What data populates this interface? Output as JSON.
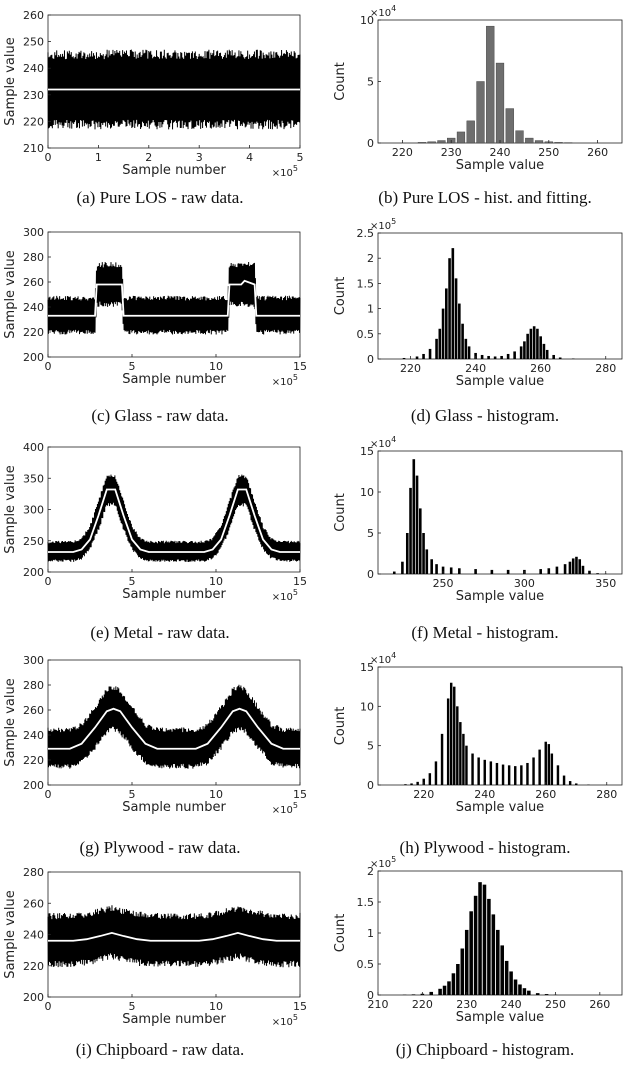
{
  "captions": {
    "a": "(a) Pure LOS - raw data.",
    "b": "(b) Pure LOS - hist. and fitting.",
    "c": "(c) Glass - raw data.",
    "d": "(d) Glass - histogram.",
    "e": "(e) Metal - raw data.",
    "f": "(f) Metal - histogram.",
    "g": "(g) Plywood - raw data.",
    "h": "(h) Plywood - histogram.",
    "i": "(i) Chipboard - raw data.",
    "j": "(j) Chipboard - histogram."
  },
  "chart_data": [
    {
      "id": "a",
      "type": "line",
      "xlabel": "Sample number",
      "ylabel": "Sample value",
      "xlim": [
        0,
        5
      ],
      "xticks": [
        0,
        1,
        2,
        3,
        4,
        5
      ],
      "x_exponent": "×10^5",
      "ylim": [
        210,
        260
      ],
      "yticks": [
        210,
        220,
        230,
        240,
        250,
        260
      ],
      "series": [
        {
          "x": [
            0,
            5
          ],
          "y": [
            232,
            232
          ]
        }
      ],
      "noise_band": {
        "x": [
          0,
          5
        ],
        "lower": [
          217,
          217
        ],
        "upper": [
          247,
          247
        ]
      }
    },
    {
      "id": "b",
      "type": "bar",
      "xlabel": "Sample value",
      "ylabel": "Count",
      "xlim": [
        215,
        265
      ],
      "xticks": [
        220,
        230,
        240,
        250,
        260
      ],
      "ylim": [
        0,
        10
      ],
      "yticks": [
        0,
        5,
        10
      ],
      "y_exponent": "×10^4",
      "x": [
        224,
        226,
        228,
        230,
        232,
        234,
        236,
        238,
        240,
        242,
        244,
        246,
        248,
        250,
        252,
        254
      ],
      "values": [
        0.05,
        0.1,
        0.2,
        0.4,
        0.9,
        1.8,
        5.0,
        9.5,
        6.5,
        2.8,
        1.0,
        0.4,
        0.2,
        0.1,
        0.05,
        0.03
      ]
    },
    {
      "id": "c",
      "type": "line",
      "xlabel": "Sample number",
      "ylabel": "Sample value",
      "xlim": [
        0,
        15
      ],
      "xticks": [
        0,
        5,
        10,
        15
      ],
      "x_exponent": "×10^5",
      "ylim": [
        200,
        300
      ],
      "yticks": [
        200,
        220,
        240,
        260,
        280,
        300
      ],
      "series": [
        {
          "x": [
            0,
            2.8,
            2.9,
            4.4,
            4.5,
            10.7,
            10.8,
            11.5,
            11.7,
            12.3,
            12.4,
            15
          ],
          "y": [
            233,
            233,
            258,
            258,
            233,
            233,
            258,
            258,
            261,
            258,
            233,
            233
          ]
        }
      ],
      "noise_band": {
        "x": [
          0,
          2.8,
          2.9,
          4.4,
          4.5,
          10.7,
          10.8,
          12.3,
          12.4,
          15
        ],
        "lower": [
          218,
          218,
          240,
          240,
          218,
          218,
          240,
          240,
          218,
          218
        ],
        "upper": [
          249,
          249,
          276,
          276,
          249,
          249,
          276,
          276,
          249,
          249
        ]
      }
    },
    {
      "id": "d",
      "type": "bar",
      "xlabel": "Sample value",
      "ylabel": "Count",
      "xlim": [
        210,
        285
      ],
      "xticks": [
        220,
        240,
        260,
        280
      ],
      "ylim": [
        0,
        2.5
      ],
      "yticks": [
        0,
        0.5,
        1,
        1.5,
        2,
        2.5
      ],
      "y_exponent": "×10^5",
      "x": [
        218,
        222,
        224,
        226,
        228,
        229,
        230,
        231,
        232,
        233,
        234,
        235,
        236,
        237,
        238,
        240,
        242,
        244,
        246,
        248,
        250,
        252,
        254,
        255,
        256,
        257,
        258,
        259,
        260,
        261,
        262,
        264,
        266,
        270
      ],
      "values": [
        0.02,
        0.05,
        0.1,
        0.2,
        0.4,
        0.6,
        1.0,
        1.4,
        2.0,
        2.2,
        1.6,
        1.1,
        0.7,
        0.4,
        0.25,
        0.12,
        0.08,
        0.06,
        0.05,
        0.06,
        0.1,
        0.15,
        0.25,
        0.35,
        0.5,
        0.6,
        0.65,
        0.6,
        0.45,
        0.3,
        0.18,
        0.08,
        0.03,
        0.01
      ]
    },
    {
      "id": "e",
      "type": "line",
      "xlabel": "Sample number",
      "ylabel": "Sample value",
      "xlim": [
        0,
        15
      ],
      "xticks": [
        0,
        5,
        10,
        15
      ],
      "x_exponent": "×10^5",
      "ylim": [
        200,
        400
      ],
      "yticks": [
        200,
        250,
        300,
        350,
        400
      ],
      "series": [
        {
          "x": [
            0,
            1.5,
            2.0,
            2.5,
            3.0,
            3.5,
            4.0,
            4.5,
            5.0,
            5.5,
            6.0,
            9.3,
            9.8,
            10.3,
            10.8,
            11.3,
            11.8,
            12.3,
            12.8,
            13.3,
            13.8,
            15
          ],
          "y": [
            232,
            232,
            236,
            252,
            290,
            332,
            332,
            290,
            252,
            236,
            232,
            232,
            236,
            252,
            290,
            332,
            332,
            290,
            252,
            236,
            232,
            232
          ]
        }
      ],
      "noise_band": {
        "x": [
          0,
          1.5,
          2.0,
          2.5,
          3.0,
          3.5,
          4.0,
          4.5,
          5.0,
          5.5,
          6.0,
          9.3,
          9.8,
          10.3,
          10.8,
          11.3,
          11.8,
          12.3,
          12.8,
          13.3,
          13.8,
          15
        ],
        "lower": [
          216,
          216,
          220,
          235,
          265,
          305,
          305,
          265,
          235,
          220,
          216,
          216,
          220,
          235,
          265,
          305,
          305,
          265,
          235,
          220,
          216,
          216
        ],
        "upper": [
          250,
          250,
          255,
          275,
          315,
          356,
          356,
          315,
          275,
          255,
          250,
          250,
          255,
          275,
          315,
          356,
          356,
          315,
          275,
          255,
          250,
          250
        ]
      }
    },
    {
      "id": "f",
      "type": "bar",
      "xlabel": "Sample value",
      "ylabel": "Count",
      "xlim": [
        210,
        360
      ],
      "xticks": [
        250,
        300,
        350
      ],
      "ylim": [
        0,
        15
      ],
      "yticks": [
        0,
        5,
        10,
        15
      ],
      "y_exponent": "×10^4",
      "x": [
        220,
        225,
        228,
        230,
        232,
        234,
        236,
        238,
        240,
        243,
        246,
        250,
        255,
        260,
        270,
        280,
        290,
        300,
        310,
        315,
        320,
        325,
        328,
        330,
        332,
        334,
        336,
        340,
        345,
        350
      ],
      "values": [
        0.3,
        1.5,
        5.0,
        10.5,
        14.0,
        12.0,
        8.0,
        5.0,
        3.0,
        1.8,
        1.2,
        0.9,
        0.8,
        0.7,
        0.6,
        0.5,
        0.5,
        0.5,
        0.6,
        0.7,
        0.9,
        1.2,
        1.5,
        1.9,
        2.1,
        1.8,
        1.0,
        0.4,
        0.1,
        0.03
      ]
    },
    {
      "id": "g",
      "type": "line",
      "xlabel": "Sample number",
      "ylabel": "Sample value",
      "xlim": [
        0,
        15
      ],
      "xticks": [
        0,
        5,
        10,
        15
      ],
      "x_exponent": "×10^5",
      "ylim": [
        200,
        300
      ],
      "yticks": [
        200,
        220,
        240,
        260,
        280,
        300
      ],
      "series": [
        {
          "x": [
            0,
            1.3,
            2.0,
            2.8,
            3.5,
            3.9,
            4.3,
            5.0,
            5.8,
            6.5,
            8.8,
            9.5,
            10.3,
            11.0,
            11.4,
            11.8,
            12.5,
            13.3,
            14.0,
            15
          ],
          "y": [
            229,
            229,
            233,
            246,
            259,
            261,
            259,
            246,
            233,
            229,
            229,
            233,
            246,
            259,
            261,
            259,
            246,
            233,
            229,
            229
          ]
        }
      ],
      "noise_band": {
        "x": [
          0,
          1.3,
          2.0,
          2.8,
          3.5,
          3.9,
          4.3,
          5.0,
          5.8,
          6.5,
          8.8,
          9.5,
          10.3,
          11.0,
          11.4,
          11.8,
          12.5,
          13.3,
          14.0,
          15
        ],
        "lower": [
          213,
          213,
          216,
          228,
          240,
          243,
          240,
          228,
          216,
          213,
          213,
          216,
          228,
          240,
          243,
          240,
          228,
          216,
          213,
          213
        ],
        "upper": [
          246,
          246,
          250,
          264,
          278,
          281,
          278,
          264,
          250,
          246,
          246,
          250,
          264,
          278,
          281,
          278,
          264,
          250,
          246,
          246
        ]
      }
    },
    {
      "id": "h",
      "type": "bar",
      "xlabel": "Sample value",
      "ylabel": "Count",
      "xlim": [
        205,
        285
      ],
      "xticks": [
        220,
        240,
        260,
        280
      ],
      "ylim": [
        0,
        15
      ],
      "yticks": [
        0,
        5,
        10,
        15
      ],
      "y_exponent": "×10^4",
      "x": [
        214,
        216,
        218,
        220,
        222,
        224,
        226,
        228,
        229,
        230,
        231,
        232,
        233,
        234,
        236,
        238,
        240,
        242,
        244,
        246,
        248,
        250,
        252,
        254,
        256,
        258,
        260,
        261,
        262,
        264,
        266,
        268,
        270,
        274
      ],
      "values": [
        0.1,
        0.2,
        0.4,
        0.8,
        1.5,
        3.0,
        6.5,
        11.0,
        13.0,
        12.5,
        10.0,
        8.0,
        6.5,
        5.0,
        4.0,
        3.5,
        3.2,
        3.0,
        2.8,
        2.6,
        2.5,
        2.4,
        2.5,
        2.8,
        3.5,
        4.5,
        5.5,
        5.2,
        4.0,
        2.5,
        1.2,
        0.5,
        0.2,
        0.05
      ]
    },
    {
      "id": "i",
      "type": "line",
      "xlabel": "Sample number",
      "ylabel": "Sample value",
      "xlim": [
        0,
        15
      ],
      "xticks": [
        0,
        5,
        10,
        15
      ],
      "x_exponent": "×10^5",
      "ylim": [
        200,
        280
      ],
      "yticks": [
        200,
        220,
        240,
        260,
        280
      ],
      "series": [
        {
          "x": [
            0,
            1.5,
            2.3,
            3.1,
            3.8,
            4.5,
            5.3,
            6.1,
            9.0,
            9.8,
            10.6,
            11.3,
            12.0,
            12.8,
            13.6,
            15
          ],
          "y": [
            236,
            236,
            237,
            239,
            241,
            239,
            237,
            236,
            236,
            237,
            239,
            241,
            239,
            237,
            236,
            236
          ]
        }
      ],
      "noise_band": {
        "x": [
          0,
          1.5,
          2.3,
          3.1,
          3.8,
          4.5,
          5.3,
          6.1,
          9.0,
          9.8,
          10.6,
          11.3,
          12.0,
          12.8,
          13.6,
          15
        ],
        "lower": [
          219,
          219,
          220,
          222,
          224,
          222,
          220,
          219,
          219,
          220,
          222,
          224,
          222,
          220,
          219,
          219
        ],
        "upper": [
          254,
          254,
          255,
          257,
          259,
          257,
          255,
          254,
          254,
          255,
          257,
          259,
          257,
          255,
          254,
          254
        ]
      }
    },
    {
      "id": "j",
      "type": "bar",
      "xlabel": "Sample value",
      "ylabel": "Count",
      "xlim": [
        210,
        265
      ],
      "xticks": [
        210,
        220,
        230,
        240,
        250,
        260
      ],
      "ylim": [
        0,
        2
      ],
      "yticks": [
        0,
        0.5,
        1,
        1.5,
        2
      ],
      "y_exponent": "×10^5",
      "x": [
        216,
        218,
        220,
        222,
        224,
        225,
        226,
        227,
        228,
        229,
        230,
        231,
        232,
        233,
        234,
        235,
        236,
        237,
        238,
        239,
        240,
        241,
        242,
        243,
        244,
        246,
        248,
        250
      ],
      "values": [
        0.005,
        0.01,
        0.02,
        0.05,
        0.1,
        0.15,
        0.22,
        0.35,
        0.5,
        0.75,
        1.05,
        1.35,
        1.6,
        1.82,
        1.78,
        1.55,
        1.3,
        1.05,
        0.8,
        0.55,
        0.38,
        0.25,
        0.17,
        0.11,
        0.07,
        0.03,
        0.015,
        0.005
      ]
    }
  ]
}
